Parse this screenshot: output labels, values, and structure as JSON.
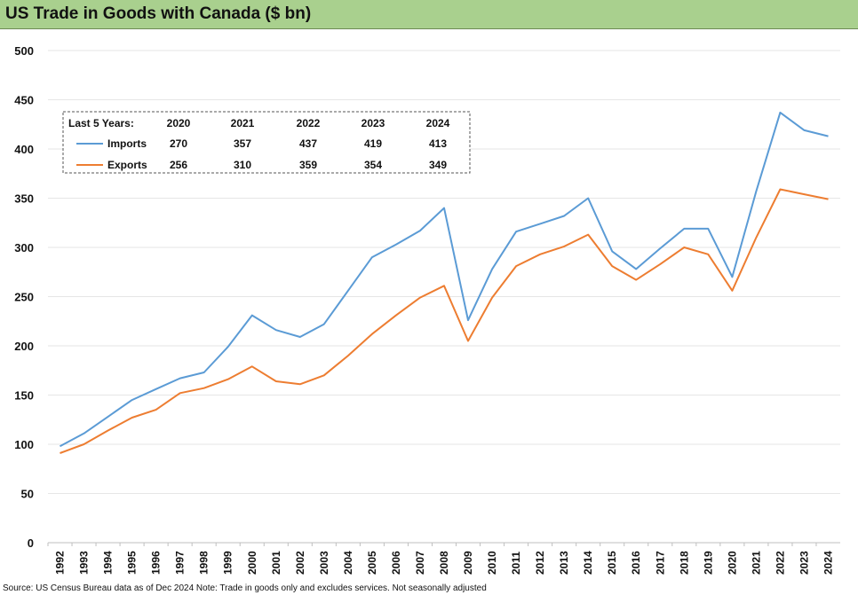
{
  "title": "US Trade in Goods with Canada ($ bn)",
  "footer_note": "Source: US Census Bureau data as of Dec 2024 Note: Trade in goods only and excludes services. Not seasonally adjusted",
  "colors": {
    "imports": "#5b9bd5",
    "exports": "#ed7d31",
    "title_bg": "#a9d08e"
  },
  "chart_data": {
    "type": "line",
    "title": "US Trade in Goods with Canada ($ bn)",
    "x": [
      "1992",
      "1993",
      "1994",
      "1995",
      "1996",
      "1997",
      "1998",
      "1999",
      "2000",
      "2001",
      "2002",
      "2003",
      "2004",
      "2005",
      "2006",
      "2007",
      "2008",
      "2009",
      "2010",
      "2011",
      "2012",
      "2013",
      "2014",
      "2015",
      "2016",
      "2017",
      "2018",
      "2019",
      "2020",
      "2021",
      "2022",
      "2023",
      "2024"
    ],
    "series": [
      {
        "name": "Imports",
        "color": "#5b9bd5",
        "values": [
          98,
          111,
          128,
          145,
          156,
          167,
          173,
          199,
          231,
          216,
          209,
          222,
          256,
          290,
          303,
          317,
          340,
          226,
          278,
          316,
          324,
          332,
          350,
          296,
          278,
          299,
          319,
          319,
          270,
          357,
          437,
          419,
          413
        ]
      },
      {
        "name": "Exports",
        "color": "#ed7d31",
        "values": [
          91,
          100,
          114,
          127,
          135,
          152,
          157,
          166,
          179,
          164,
          161,
          170,
          190,
          212,
          231,
          249,
          261,
          205,
          249,
          281,
          293,
          301,
          313,
          281,
          267,
          283,
          300,
          293,
          256,
          310,
          359,
          354,
          349
        ]
      }
    ],
    "ylim": [
      0,
      500
    ],
    "yticks": [
      0,
      50,
      100,
      150,
      200,
      250,
      300,
      350,
      400,
      450,
      500
    ],
    "grid": true,
    "legend_table": {
      "header_label": "Last 5 Years:",
      "years": [
        "2020",
        "2021",
        "2022",
        "2023",
        "2024"
      ],
      "rows": [
        {
          "label": "Imports",
          "values": [
            "270",
            "357",
            "437",
            "419",
            "413"
          ]
        },
        {
          "label": "Exports",
          "values": [
            "256",
            "310",
            "359",
            "354",
            "349"
          ]
        }
      ]
    }
  }
}
